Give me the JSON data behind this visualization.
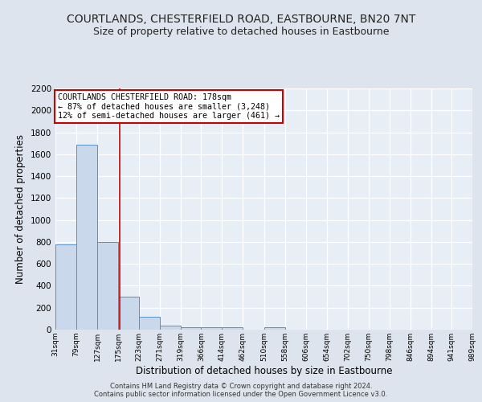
{
  "title": "COURTLANDS, CHESTERFIELD ROAD, EASTBOURNE, BN20 7NT",
  "subtitle": "Size of property relative to detached houses in Eastbourne",
  "xlabel": "Distribution of detached houses by size in Eastbourne",
  "ylabel": "Number of detached properties",
  "footer_line1": "Contains HM Land Registry data © Crown copyright and database right 2024.",
  "footer_line2": "Contains public sector information licensed under the Open Government Licence v3.0.",
  "annotation_line1": "COURTLANDS CHESTERFIELD ROAD: 178sqm",
  "annotation_line2": "← 87% of detached houses are smaller (3,248)",
  "annotation_line3": "12% of semi-detached houses are larger (461) →",
  "bar_edges": [
    31,
    79,
    127,
    175,
    223,
    271,
    319,
    366,
    414,
    462,
    510,
    558,
    606,
    654,
    702,
    750,
    798,
    846,
    894,
    941,
    989
  ],
  "bar_heights": [
    780,
    1690,
    800,
    300,
    115,
    40,
    25,
    20,
    20,
    0,
    20,
    0,
    0,
    0,
    0,
    0,
    0,
    0,
    0,
    0
  ],
  "bar_color": "#c9d9eb",
  "bar_edge_color": "#5b8fc4",
  "red_line_x": 178,
  "ylim": [
    0,
    2200
  ],
  "yticks": [
    0,
    200,
    400,
    600,
    800,
    1000,
    1200,
    1400,
    1600,
    1800,
    2000,
    2200
  ],
  "tick_labels": [
    "31sqm",
    "79sqm",
    "127sqm",
    "175sqm",
    "223sqm",
    "271sqm",
    "319sqm",
    "366sqm",
    "414sqm",
    "462sqm",
    "510sqm",
    "558sqm",
    "606sqm",
    "654sqm",
    "702sqm",
    "750sqm",
    "798sqm",
    "846sqm",
    "894sqm",
    "941sqm",
    "989sqm"
  ],
  "background_color": "#dde4ed",
  "plot_bg_color": "#e8eef5",
  "grid_color": "#ffffff",
  "title_fontsize": 10,
  "subtitle_fontsize": 9,
  "annotation_box_color": "#ffffff",
  "annotation_box_edge": "#cc0000"
}
